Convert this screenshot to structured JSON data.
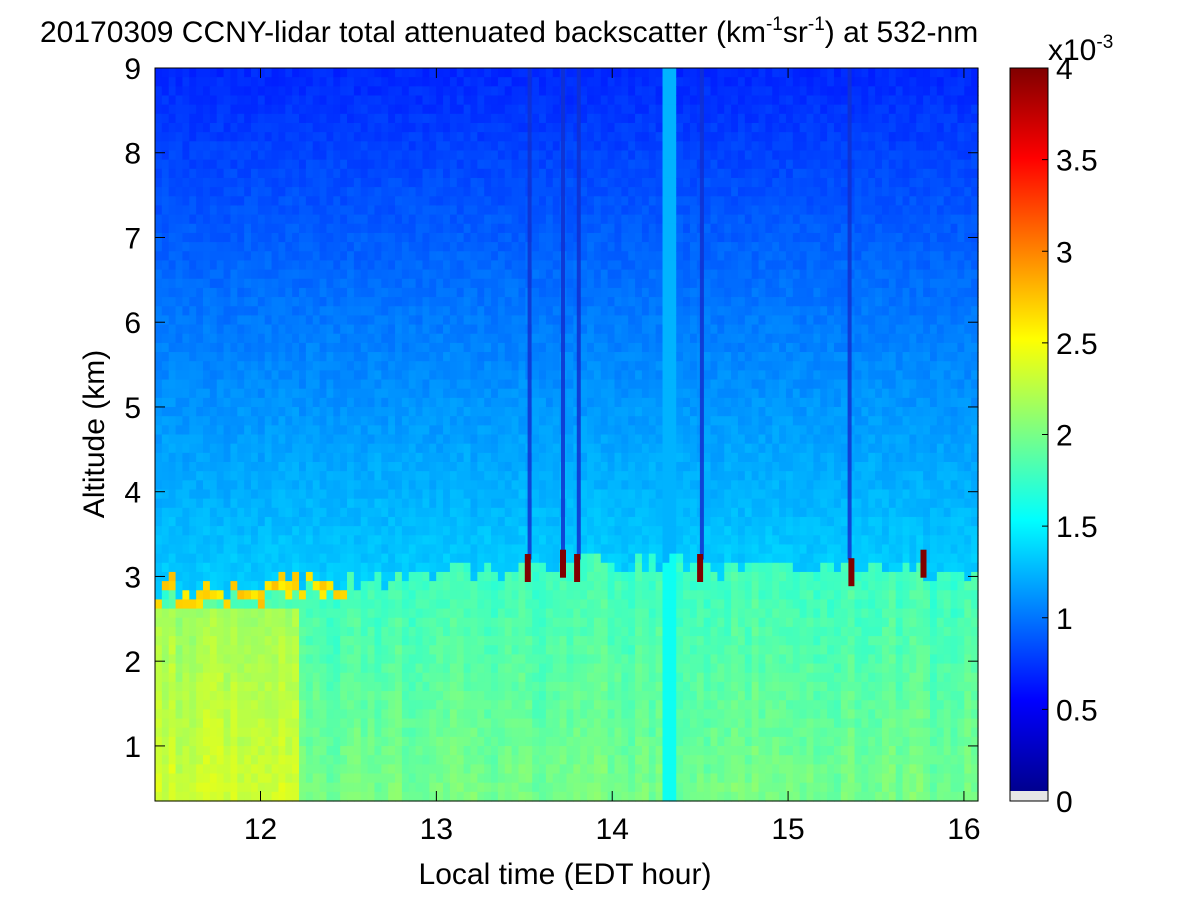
{
  "chart_data": {
    "type": "heatmap",
    "title": {
      "prefix": "20170309 CCNY-lidar total attenuated backscatter (km",
      "exp1": "-1",
      "mid": "sr",
      "exp2": "-1",
      "suffix": ") at 532-nm"
    },
    "xlabel": "Local time (EDT hour)",
    "ylabel": "Altitude (km)",
    "xlim": [
      11.4,
      16.08
    ],
    "ylim": [
      0.35,
      9.0
    ],
    "xticks": [
      "12",
      "13",
      "14",
      "15",
      "16"
    ],
    "yticks": [
      "1",
      "2",
      "3",
      "4",
      "5",
      "6",
      "7",
      "8",
      "9"
    ],
    "colorbar": {
      "range": [
        0,
        4
      ],
      "multiplier_base": "x10",
      "multiplier_exp": "-3",
      "ticks": [
        "0",
        "0.5",
        "1",
        "1.5",
        "2",
        "2.5",
        "3",
        "3.5",
        "4"
      ],
      "colormap": "jet"
    },
    "features": {
      "boundary_layer_top_km": [
        [
          11.4,
          2.9
        ],
        [
          11.8,
          2.85
        ],
        [
          12.3,
          2.95
        ],
        [
          12.8,
          3.0
        ],
        [
          13.3,
          3.05
        ],
        [
          13.8,
          3.15
        ],
        [
          14.3,
          3.2
        ],
        [
          14.5,
          3.1
        ],
        [
          15.0,
          3.05
        ],
        [
          15.5,
          3.1
        ],
        [
          16.08,
          2.95
        ]
      ],
      "cloud_spikes": [
        {
          "x": 13.52,
          "y": 3.1
        },
        {
          "x": 13.72,
          "y": 3.15
        },
        {
          "x": 13.8,
          "y": 3.1
        },
        {
          "x": 14.5,
          "y": 3.1
        },
        {
          "x": 15.36,
          "y": 3.05
        },
        {
          "x": 15.77,
          "y": 3.15
        }
      ],
      "vertical_streaks_hours": [
        13.53,
        13.72,
        13.81,
        14.51,
        15.35
      ],
      "data_gap_hour": 14.32
    }
  }
}
